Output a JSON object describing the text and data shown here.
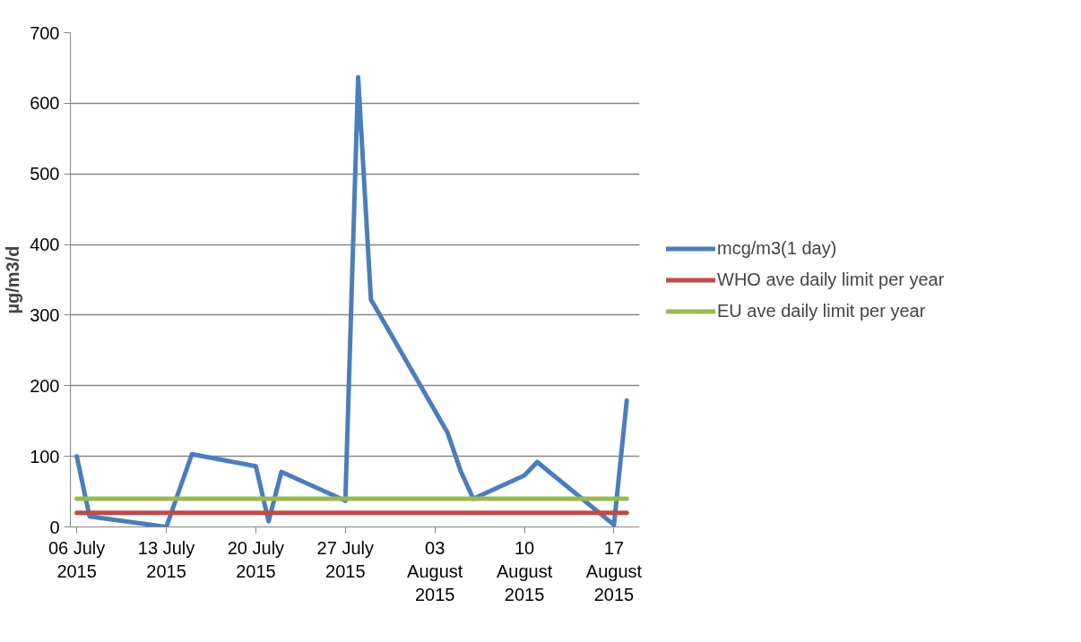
{
  "chart_data": {
    "type": "line",
    "ylabel": "µg/m3/d",
    "x": [
      "2015-07-06",
      "2015-07-07",
      "2015-07-13",
      "2015-07-15",
      "2015-07-20",
      "2015-07-21",
      "2015-07-22",
      "2015-07-27",
      "2015-07-28",
      "2015-07-29",
      "2015-08-04",
      "2015-08-05",
      "2015-08-06",
      "2015-08-10",
      "2015-08-11",
      "2015-08-17",
      "2015-08-18"
    ],
    "series": [
      {
        "name": "mcg/m3(1 day)",
        "color": "#4a7ebb",
        "values": [
          100,
          15,
          0,
          103,
          86,
          8,
          78,
          37,
          637,
          322,
          133,
          80,
          40,
          73,
          92,
          3,
          179
        ]
      },
      {
        "name": "WHO ave daily limit per year",
        "color": "#be4b48",
        "x": [
          "2015-07-06",
          "2015-08-18"
        ],
        "values": [
          20,
          20
        ]
      },
      {
        "name": "EU ave daily limit per year",
        "color": "#98b954",
        "x": [
          "2015-07-06",
          "2015-08-18"
        ],
        "values": [
          40,
          40
        ]
      }
    ],
    "xlim": [
      "2015-07-05T12:00",
      "2015-08-19T00:00"
    ],
    "xticks": [
      {
        "value": "2015-07-06",
        "label": "06 July\n2015"
      },
      {
        "value": "2015-07-13",
        "label": "13 July\n2015"
      },
      {
        "value": "2015-07-20",
        "label": "20 July\n2015"
      },
      {
        "value": "2015-07-27",
        "label": "27 July\n2015"
      },
      {
        "value": "2015-08-03",
        "label": "03\nAugust\n2015"
      },
      {
        "value": "2015-08-10",
        "label": "10\nAugust\n2015"
      },
      {
        "value": "2015-08-17",
        "label": "17\nAugust\n2015"
      }
    ],
    "ylim": [
      0,
      700
    ],
    "yticks": [
      0,
      100,
      200,
      300,
      400,
      500,
      600,
      700
    ],
    "grid": "y",
    "legend": "right",
    "marker": "none",
    "line_style": "solid"
  }
}
